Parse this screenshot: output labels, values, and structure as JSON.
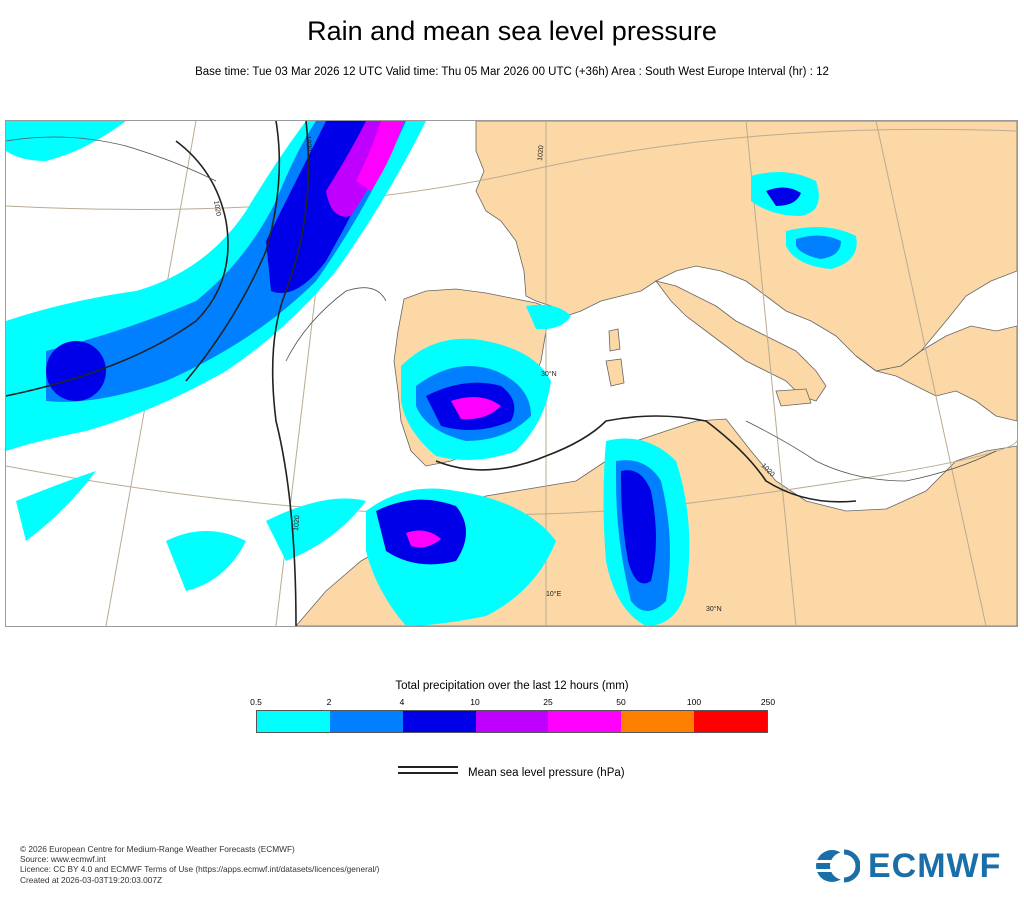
{
  "title": "Rain and mean sea level pressure",
  "subtitle": "Base time: Tue 03 Mar 2026 12 UTC Valid time: Thu 05 Mar 2026 00 UTC (+36h) Area : South West Europe Interval (hr) : 12",
  "map": {
    "isobar_labels": [
      "1020",
      "1020",
      "1020",
      "1020",
      "1020"
    ],
    "grid_labels": [
      "30°N",
      "10°E",
      "30°N"
    ]
  },
  "legend": {
    "title": "Total precipitation over the last 12 hours (mm)",
    "ticks": [
      "0.5",
      "2",
      "4",
      "10",
      "25",
      "50",
      "100",
      "250"
    ],
    "colors": [
      "#00ffff",
      "#0080ff",
      "#0000e8",
      "#c000ff",
      "#ff00ff",
      "#ff8000",
      "#ff0000"
    ],
    "isobar_label": "Mean sea level pressure (hPa)"
  },
  "colors": {
    "land": "#fbd8a6",
    "sea": "#ffffff",
    "border": "#555555",
    "isobar": "#222222",
    "graticule": "#b9ab94"
  },
  "footer": [
    "© 2026 European Centre for Medium-Range Weather Forecasts (ECMWF)",
    "Source: www.ecmwf.int",
    "Licence: CC BY 4.0 and ECMWF Terms of Use (https://apps.ecmwf.int/datasets/licences/general/)",
    "Created at 2026-03-03T19:20:03.007Z"
  ],
  "logo": {
    "text": "ECMWF",
    "icon": "ecmwf-logo-icon"
  }
}
